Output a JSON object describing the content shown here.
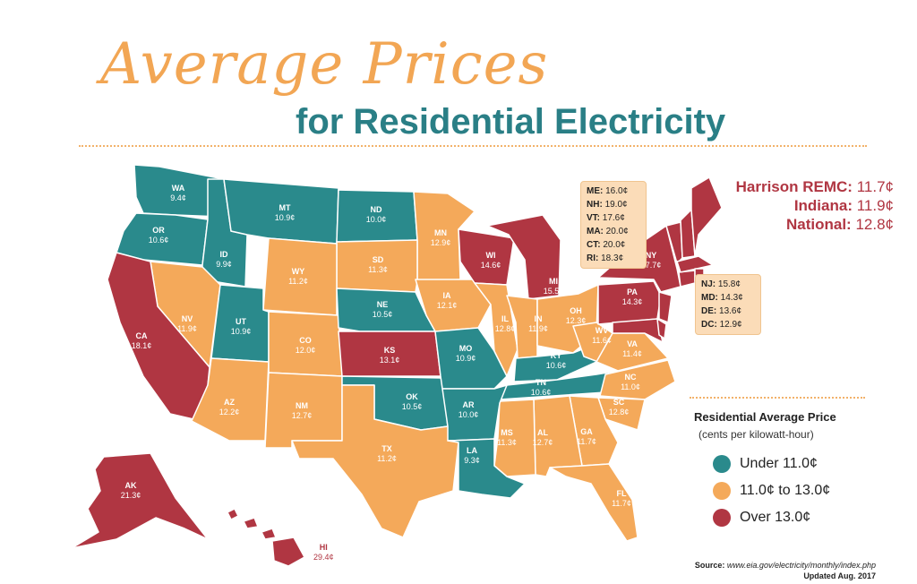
{
  "title": {
    "line1": "Average Prices",
    "line2": "for Residential Electricity"
  },
  "colors": {
    "teal": "#2a8a8c",
    "orange": "#f4a95a",
    "red": "#b03642"
  },
  "states": [
    {
      "abbr": "WA",
      "price": "9.4¢",
      "category": "under"
    },
    {
      "abbr": "OR",
      "price": "10.6¢",
      "category": "under"
    },
    {
      "abbr": "ID",
      "price": "9.9¢",
      "category": "under"
    },
    {
      "abbr": "MT",
      "price": "10.9¢",
      "category": "under"
    },
    {
      "abbr": "ND",
      "price": "10.0¢",
      "category": "under"
    },
    {
      "abbr": "MN",
      "price": "12.9¢",
      "category": "mid"
    },
    {
      "abbr": "SD",
      "price": "11.3¢",
      "category": "mid"
    },
    {
      "abbr": "WY",
      "price": "11.2¢",
      "category": "mid"
    },
    {
      "abbr": "NV",
      "price": "11.9¢",
      "category": "mid"
    },
    {
      "abbr": "UT",
      "price": "10.9¢",
      "category": "under"
    },
    {
      "abbr": "CA",
      "price": "18.1¢",
      "category": "over"
    },
    {
      "abbr": "CO",
      "price": "12.0¢",
      "category": "mid"
    },
    {
      "abbr": "NE",
      "price": "10.5¢",
      "category": "under"
    },
    {
      "abbr": "KS",
      "price": "13.1¢",
      "category": "over"
    },
    {
      "abbr": "IA",
      "price": "12.1¢",
      "category": "mid"
    },
    {
      "abbr": "WI",
      "price": "14.6¢",
      "category": "over"
    },
    {
      "abbr": "MI",
      "price": "15.5¢",
      "category": "over"
    },
    {
      "abbr": "IL",
      "price": "12.8¢",
      "category": "mid"
    },
    {
      "abbr": "IN",
      "price": "11.9¢",
      "category": "mid"
    },
    {
      "abbr": "OH",
      "price": "12.3¢",
      "category": "mid"
    },
    {
      "abbr": "MO",
      "price": "10.9¢",
      "category": "under"
    },
    {
      "abbr": "KY",
      "price": "10.6¢",
      "category": "under"
    },
    {
      "abbr": "WV",
      "price": "11.6¢",
      "category": "mid"
    },
    {
      "abbr": "VA",
      "price": "11.4¢",
      "category": "mid"
    },
    {
      "abbr": "NY",
      "price": "17.7¢",
      "category": "over"
    },
    {
      "abbr": "PA",
      "price": "14.3¢",
      "category": "over"
    },
    {
      "abbr": "AZ",
      "price": "12.2¢",
      "category": "mid"
    },
    {
      "abbr": "NM",
      "price": "12.7¢",
      "category": "mid"
    },
    {
      "abbr": "OK",
      "price": "10.5¢",
      "category": "under"
    },
    {
      "abbr": "TX",
      "price": "11.2¢",
      "category": "mid"
    },
    {
      "abbr": "AR",
      "price": "10.0¢",
      "category": "under"
    },
    {
      "abbr": "LA",
      "price": "9.3¢",
      "category": "under"
    },
    {
      "abbr": "MS",
      "price": "11.3¢",
      "category": "mid"
    },
    {
      "abbr": "TN",
      "price": "10.6¢",
      "category": "under"
    },
    {
      "abbr": "AL",
      "price": "12.7¢",
      "category": "mid"
    },
    {
      "abbr": "GA",
      "price": "11.7¢",
      "category": "mid"
    },
    {
      "abbr": "FL",
      "price": "11.7¢",
      "category": "mid"
    },
    {
      "abbr": "NC",
      "price": "11.0¢",
      "category": "mid"
    },
    {
      "abbr": "SC",
      "price": "12.8¢",
      "category": "mid"
    },
    {
      "abbr": "AK",
      "price": "21.3¢",
      "category": "over"
    },
    {
      "abbr": "HI",
      "price": "29.4¢",
      "category": "over"
    }
  ],
  "callout_ne": [
    {
      "abbr": "ME:",
      "price": "16.0¢"
    },
    {
      "abbr": "NH:",
      "price": "19.0¢"
    },
    {
      "abbr": "VT:",
      "price": "17.6¢"
    },
    {
      "abbr": "MA:",
      "price": "20.0¢"
    },
    {
      "abbr": "CT:",
      "price": "20.0¢"
    },
    {
      "abbr": "RI:",
      "price": "18.3¢"
    }
  ],
  "callout_ma": [
    {
      "abbr": "NJ:",
      "price": "15.8¢"
    },
    {
      "abbr": "MD:",
      "price": "14.3¢"
    },
    {
      "abbr": "DE:",
      "price": "13.6¢"
    },
    {
      "abbr": "DC:",
      "price": "12.9¢"
    }
  ],
  "highlights": [
    {
      "name": "Harrison REMC:",
      "price": "11.7¢"
    },
    {
      "name": "Indiana:",
      "price": "11.9¢"
    },
    {
      "name": "National:",
      "price": "12.8¢"
    }
  ],
  "legend": {
    "title": "Residential Average Price",
    "subtitle": "(cents per kilowatt-hour)",
    "items": [
      {
        "label": "Under 11.0¢",
        "color": "#2a8a8c"
      },
      {
        "label": "11.0¢ to 13.0¢",
        "color": "#f4a95a"
      },
      {
        "label": "Over 13.0¢",
        "color": "#b03642"
      }
    ]
  },
  "source": {
    "label": "Source:",
    "url": "www.eia.gov/electricity/monthly/index.php",
    "updated": "Updated Aug. 2017"
  }
}
